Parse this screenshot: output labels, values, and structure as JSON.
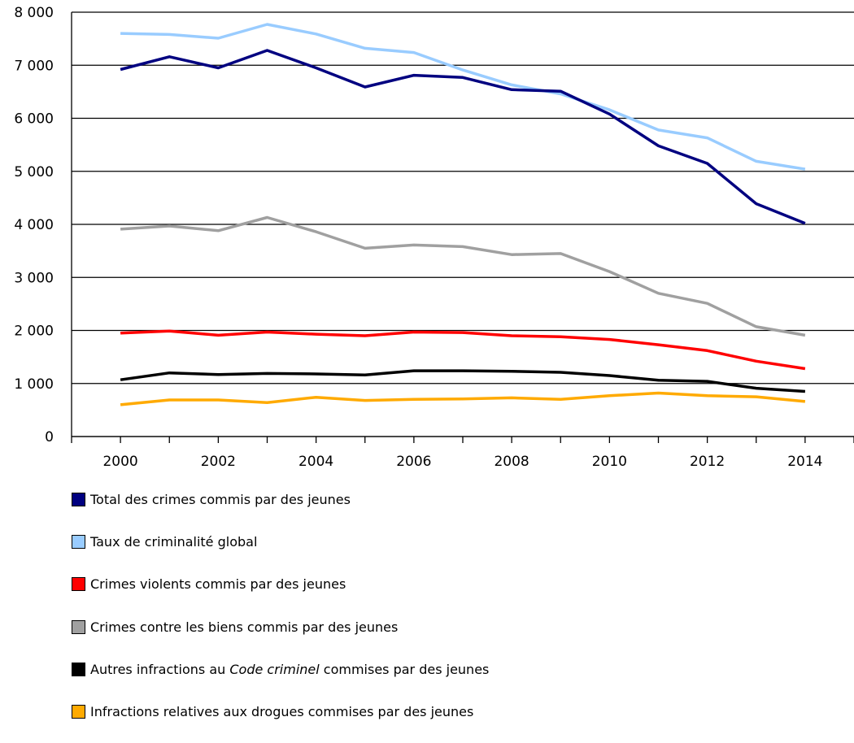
{
  "chart_data": {
    "type": "line",
    "title": "",
    "xlabel": "",
    "ylabel": "",
    "ylim": [
      0,
      8000
    ],
    "xlim": [
      1999,
      2015
    ],
    "y_ticks": [
      "0",
      "1 000",
      "2 000",
      "3 000",
      "4 000",
      "5 000",
      "6 000",
      "7 000",
      "8 000"
    ],
    "x_ticks": [
      "2000",
      "2002",
      "2004",
      "2006",
      "2008",
      "2010",
      "2012",
      "2014"
    ],
    "x": [
      2000,
      2001,
      2002,
      2003,
      2004,
      2005,
      2006,
      2007,
      2008,
      2009,
      2010,
      2011,
      2012,
      2013,
      2014
    ],
    "grid": false,
    "legend_position": "bottom",
    "series": [
      {
        "name": "Total des crimes commis par des jeunes",
        "color": "#000080",
        "values": [
          6920,
          7160,
          6950,
          7280,
          6950,
          6590,
          6810,
          6770,
          6540,
          6510,
          6080,
          5480,
          5150,
          4390,
          4020
        ]
      },
      {
        "name": "Taux de criminalité global",
        "color": "#99ccff",
        "values": [
          7600,
          7580,
          7510,
          7770,
          7590,
          7320,
          7240,
          6910,
          6630,
          6460,
          6160,
          5780,
          5630,
          5190,
          5040
        ]
      },
      {
        "name": "Crimes violents commis par des jeunes",
        "color": "#ff0000",
        "values": [
          1950,
          1990,
          1910,
          1970,
          1930,
          1900,
          1970,
          1960,
          1900,
          1880,
          1830,
          1730,
          1620,
          1420,
          1280
        ]
      },
      {
        "name": "Crimes contre les biens commis par des jeunes",
        "color": "#a0a0a0",
        "values": [
          3910,
          3970,
          3880,
          4130,
          3860,
          3550,
          3610,
          3580,
          3430,
          3450,
          3110,
          2700,
          2510,
          2070,
          1910
        ]
      },
      {
        "name": "Autres infractions au Code criminel commises par des jeunes",
        "color": "#000000",
        "values": [
          1070,
          1200,
          1170,
          1190,
          1180,
          1160,
          1240,
          1240,
          1230,
          1210,
          1150,
          1060,
          1040,
          910,
          850
        ]
      },
      {
        "name": "Infractions relatives aux drogues commises par des jeunes",
        "color": "#ffaa00",
        "values": [
          600,
          690,
          690,
          640,
          740,
          680,
          700,
          710,
          730,
          700,
          770,
          820,
          770,
          750,
          660
        ]
      }
    ],
    "legend": [
      {
        "pre": "Total des crimes commis par des jeunes",
        "italic": "",
        "post": ""
      },
      {
        "pre": "Taux de criminalité global",
        "italic": "",
        "post": ""
      },
      {
        "pre": "Crimes violents commis par des jeunes",
        "italic": "",
        "post": ""
      },
      {
        "pre": "Crimes contre les biens commis par des jeunes",
        "italic": "",
        "post": ""
      },
      {
        "pre": "Autres infractions au ",
        "italic": "Code criminel",
        "post": " commises par des jeunes"
      },
      {
        "pre": "Infractions relatives aux drogues commises par des jeunes",
        "italic": "",
        "post": ""
      }
    ]
  }
}
